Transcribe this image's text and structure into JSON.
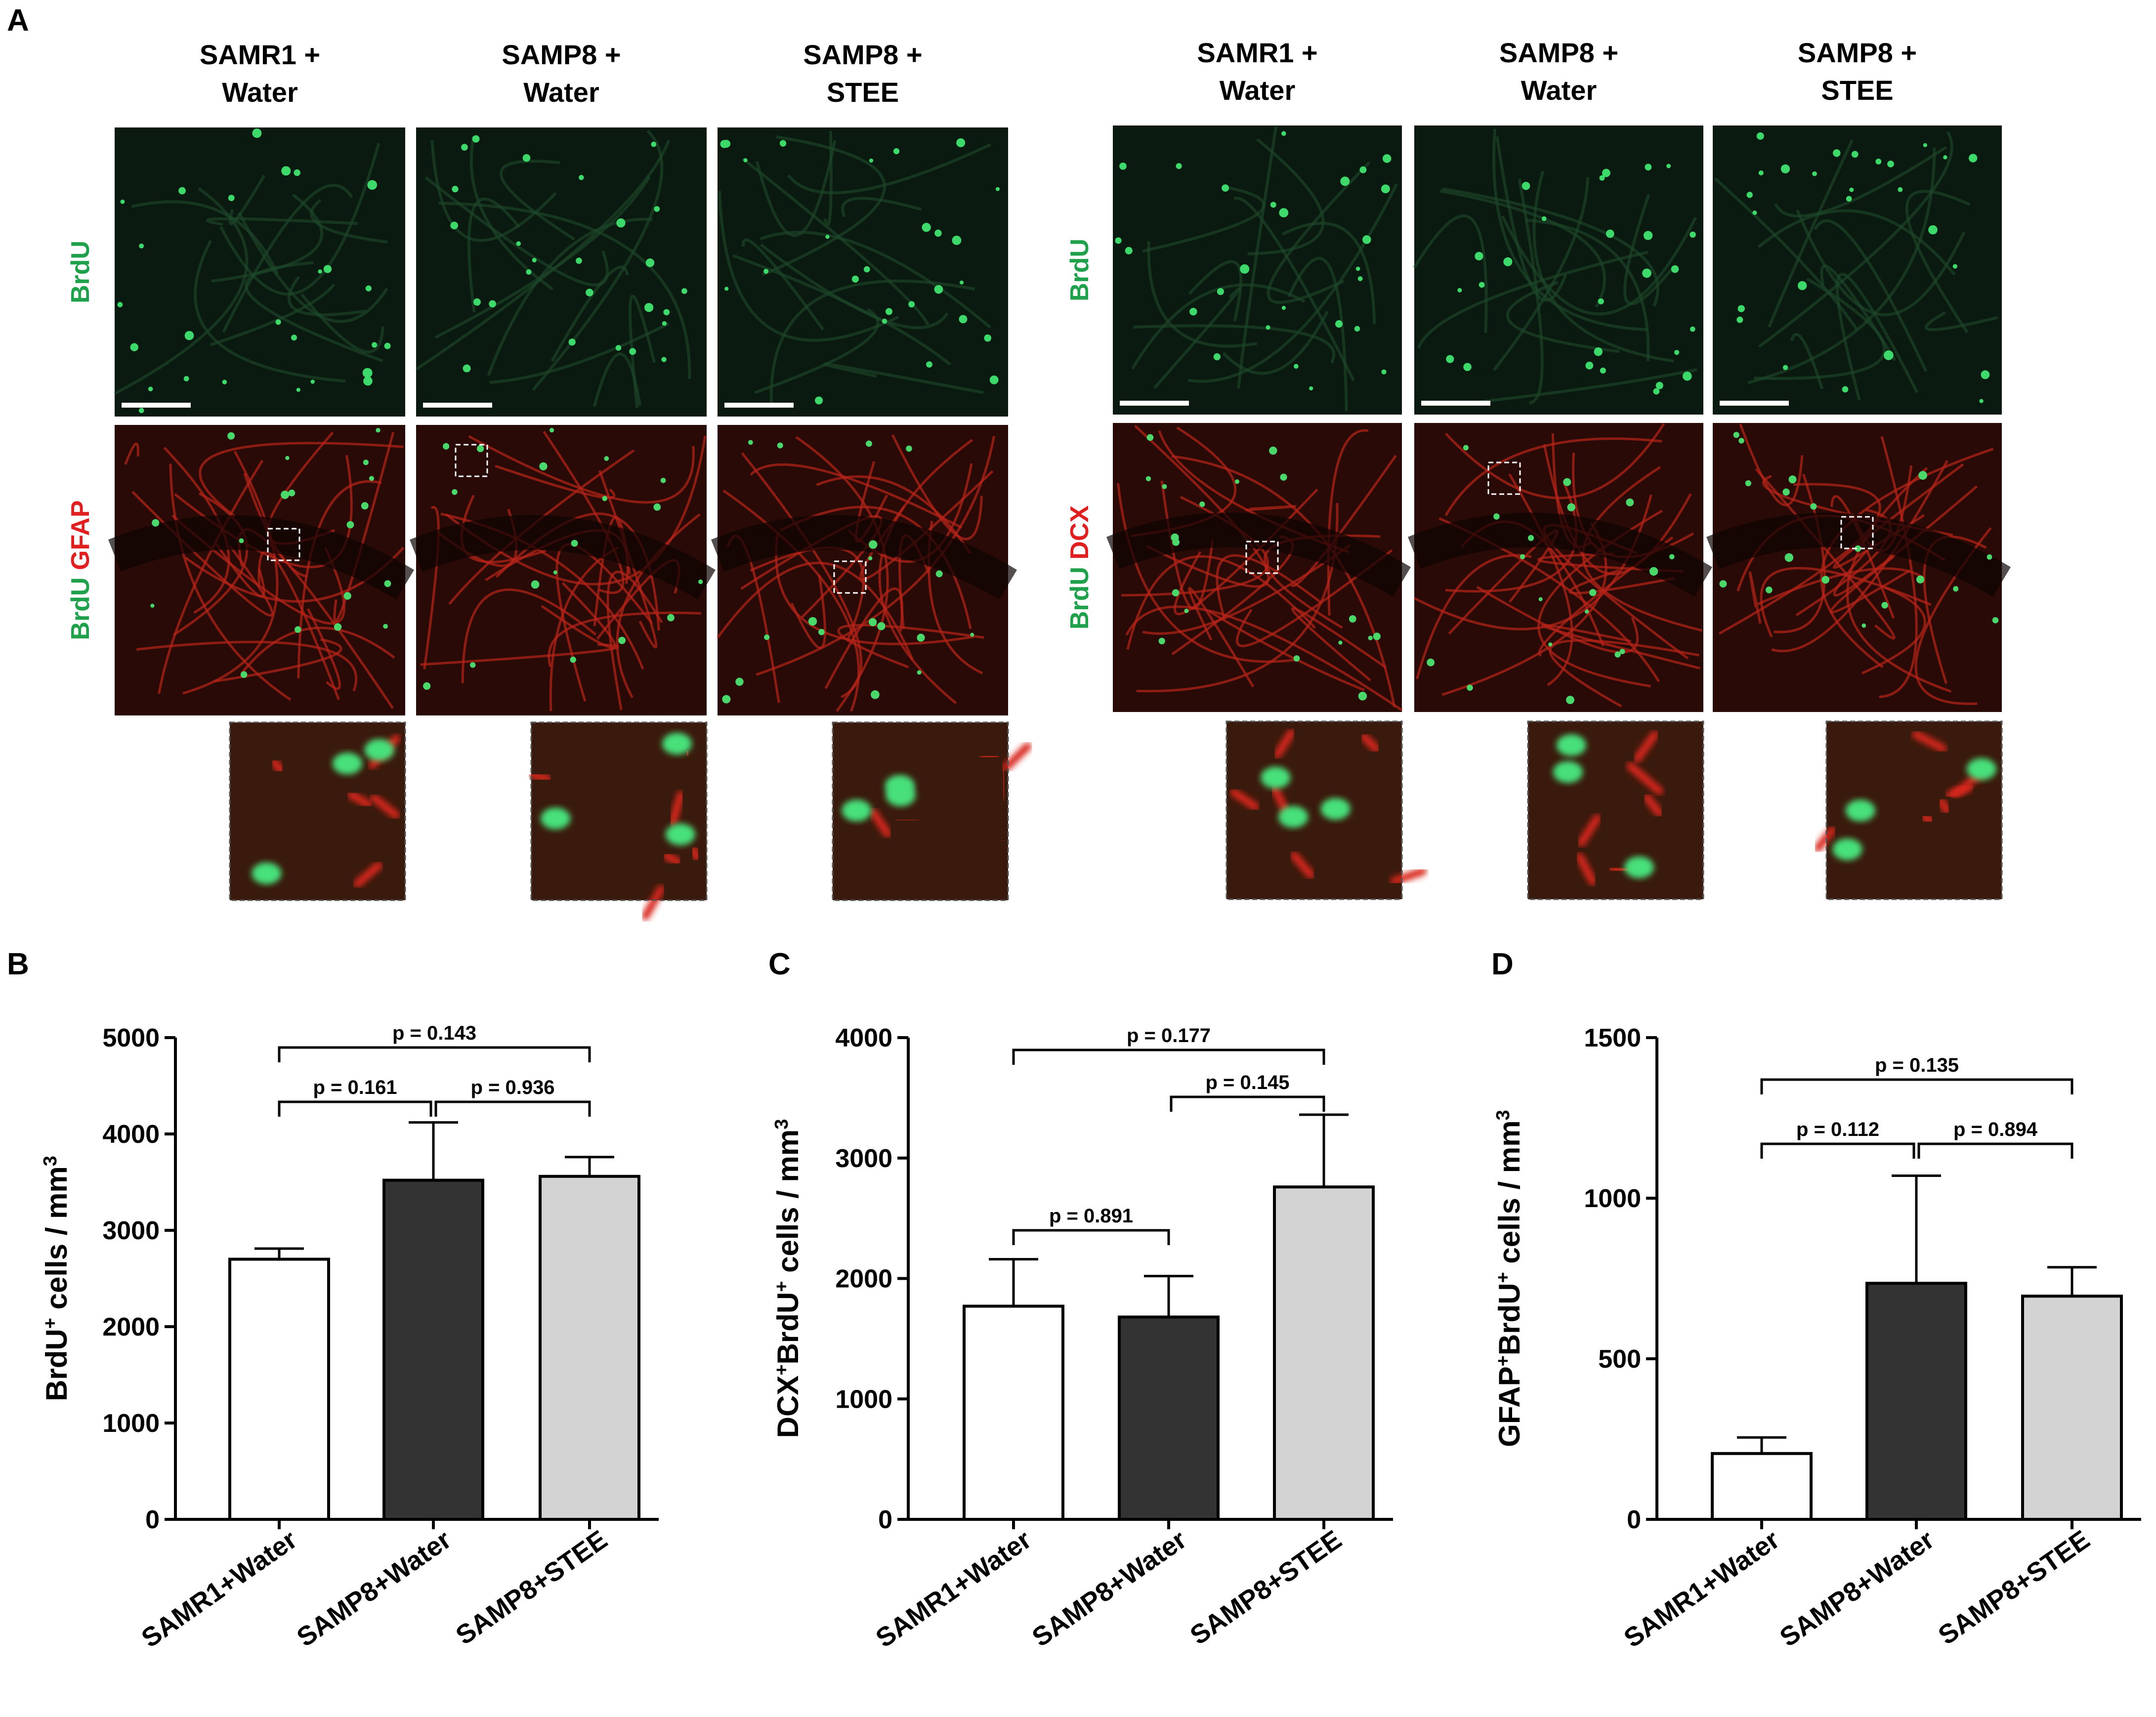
{
  "panel_letters": {
    "a": "A",
    "b": "B",
    "c": "C",
    "d": "D"
  },
  "panel_a": {
    "left_group": {
      "columns": [
        {
          "line1": "SAMR1 +",
          "line2": "Water"
        },
        {
          "line1": "SAMP8 +",
          "line2": "Water"
        },
        {
          "line1": "SAMP8 +",
          "line2": "STEE"
        }
      ],
      "row1_label": "BrdU",
      "row2_label_red": "GFAP",
      "row2_label_green": "BrdU"
    },
    "right_group": {
      "columns": [
        {
          "line1": "SAMR1 +",
          "line2": "Water"
        },
        {
          "line1": "SAMP8 +",
          "line2": "Water"
        },
        {
          "line1": "SAMP8 +",
          "line2": "STEE"
        }
      ],
      "row1_label": "BrdU",
      "row2_label_red": "DCX",
      "row2_label_green": "BrdU"
    },
    "colors": {
      "green_label": "#1fa04a",
      "red_label": "#e02020"
    }
  },
  "chart_data": [
    {
      "type": "bar",
      "panel": "B",
      "categories": [
        "SAMR1+Water",
        "SAMP8+Water",
        "SAMP8+STEE"
      ],
      "values": [
        2700,
        3520,
        3560
      ],
      "errors": [
        110,
        600,
        200
      ],
      "ylabel_main": "BrdU",
      "ylabel_sup": "+",
      "ylabel_rest": " cells / mm",
      "ylabel_unit_sup": "3",
      "ylim": [
        0,
        5000
      ],
      "yticks": [
        "0",
        "1000",
        "2000",
        "3000",
        "4000",
        "5000"
      ],
      "fills": [
        "#ffffff",
        "#333333",
        "#d3d3d3"
      ],
      "brackets": [
        {
          "from": 0,
          "to": 1,
          "level": 1,
          "label": "p = 0.161"
        },
        {
          "from": 1,
          "to": 2,
          "level": 1,
          "label": "p = 0.936"
        },
        {
          "from": 0,
          "to": 2,
          "level": 2,
          "label": "p = 0.143"
        }
      ]
    },
    {
      "type": "bar",
      "panel": "C",
      "categories": [
        "SAMR1+Water",
        "SAMP8+Water",
        "SAMP8+STEE"
      ],
      "values": [
        1770,
        1680,
        2760
      ],
      "errors": [
        390,
        340,
        600
      ],
      "ylabel_main": "DCX",
      "ylabel_sup": "+",
      "ylabel_main2": "BrdU",
      "ylabel_sup2": "+",
      "ylabel_rest": " cells / mm",
      "ylabel_unit_sup": "3",
      "ylim": [
        0,
        4000
      ],
      "yticks": [
        "0",
        "1000",
        "2000",
        "3000",
        "4000"
      ],
      "fills": [
        "#ffffff",
        "#333333",
        "#d3d3d3"
      ],
      "brackets": [
        {
          "from": 0,
          "to": 1,
          "level": 0,
          "label": "p = 0.891"
        },
        {
          "from": 1,
          "to": 2,
          "level": 1,
          "label": "p = 0.145"
        },
        {
          "from": 0,
          "to": 2,
          "level": 2,
          "label": "p = 0.177"
        }
      ]
    },
    {
      "type": "bar",
      "panel": "D",
      "categories": [
        "SAMR1+Water",
        "SAMP8+Water",
        "SAMP8+STEE"
      ],
      "values": [
        205,
        735,
        695
      ],
      "errors": [
        50,
        335,
        90
      ],
      "ylabel_main": "GFAP",
      "ylabel_sup": "+",
      "ylabel_main2": "BrdU",
      "ylabel_sup2": "+",
      "ylabel_rest": " cells / mm",
      "ylabel_unit_sup": "3",
      "ylim": [
        0,
        1500
      ],
      "yticks": [
        "0",
        "500",
        "1000",
        "1500"
      ],
      "fills": [
        "#ffffff",
        "#333333",
        "#d3d3d3"
      ],
      "brackets": [
        {
          "from": 0,
          "to": 1,
          "level": 1,
          "label": "p = 0.112"
        },
        {
          "from": 1,
          "to": 2,
          "level": 1,
          "label": "p = 0.894"
        },
        {
          "from": 0,
          "to": 2,
          "level": 2,
          "label": "p = 0.135"
        }
      ]
    }
  ]
}
